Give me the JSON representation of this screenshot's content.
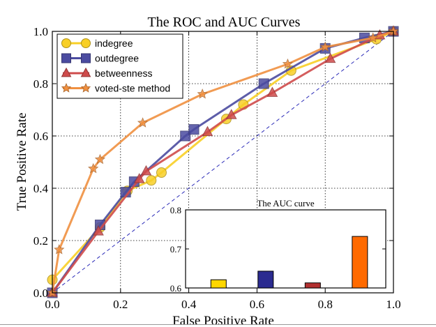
{
  "chart_data": [
    {
      "type": "line",
      "title": "The ROC and AUC Curves",
      "xlabel": "False Positive Rate",
      "ylabel": "True Positive Rate",
      "xlim": [
        0.0,
        1.0
      ],
      "ylim": [
        0.0,
        1.0
      ],
      "xticks": [
        "0.0",
        "0.2",
        "0.4",
        "0.6",
        "0.8",
        "1.0"
      ],
      "yticks": [
        "0.0",
        "0.2",
        "0.4",
        "0.6",
        "0.8",
        "1.0"
      ],
      "grid": true,
      "legend_position": "top-left",
      "diagonal_reference": {
        "x": [
          0,
          1
        ],
        "y": [
          0,
          1
        ],
        "color": "#2b2bb8",
        "style": "dashed"
      },
      "series": [
        {
          "name": "indegree",
          "color": "#f8cf26",
          "marker": "circle",
          "x": [
            0.0,
            0.14,
            0.22,
            0.29,
            0.32,
            0.51,
            0.56,
            0.7,
            0.95,
            1.0
          ],
          "y": [
            0.05,
            0.25,
            0.39,
            0.43,
            0.46,
            0.665,
            0.72,
            0.85,
            0.97,
            1.0
          ]
        },
        {
          "name": "outdegree",
          "color": "#4b4ba0",
          "marker": "square",
          "x": [
            0.0,
            0.14,
            0.215,
            0.24,
            0.39,
            0.415,
            0.62,
            0.8,
            0.915,
            1.0
          ],
          "y": [
            0.0,
            0.26,
            0.385,
            0.425,
            0.6,
            0.625,
            0.8,
            0.935,
            0.975,
            1.0
          ]
        },
        {
          "name": "betweenness",
          "color": "#cf4b4b",
          "marker": "triangle",
          "x": [
            0.0,
            0.135,
            0.255,
            0.275,
            0.455,
            0.525,
            0.645,
            0.815,
            0.96,
            1.0
          ],
          "y": [
            0.0,
            0.235,
            0.435,
            0.465,
            0.615,
            0.68,
            0.765,
            0.895,
            0.985,
            1.0
          ]
        },
        {
          "name": "voted-ste method",
          "color": "#f09040",
          "marker": "star",
          "x": [
            0.0,
            0.02,
            0.12,
            0.14,
            0.265,
            0.44,
            0.69,
            0.8,
            0.94,
            1.0
          ],
          "y": [
            0.0,
            0.165,
            0.475,
            0.51,
            0.65,
            0.76,
            0.875,
            0.94,
            0.975,
            1.0
          ]
        }
      ]
    },
    {
      "type": "bar",
      "title": "The AUC curve",
      "ylim": [
        0.6,
        0.8
      ],
      "yticks": [
        "0.6",
        "0.7",
        "0.8"
      ],
      "categories": [
        "indegree",
        "outdegree",
        "betweenness",
        "voted-ste method"
      ],
      "values": [
        0.621,
        0.643,
        0.613,
        0.732
      ],
      "colors": [
        "#ffd700",
        "#2b2b90",
        "#b23030",
        "#ff6a00"
      ]
    }
  ]
}
